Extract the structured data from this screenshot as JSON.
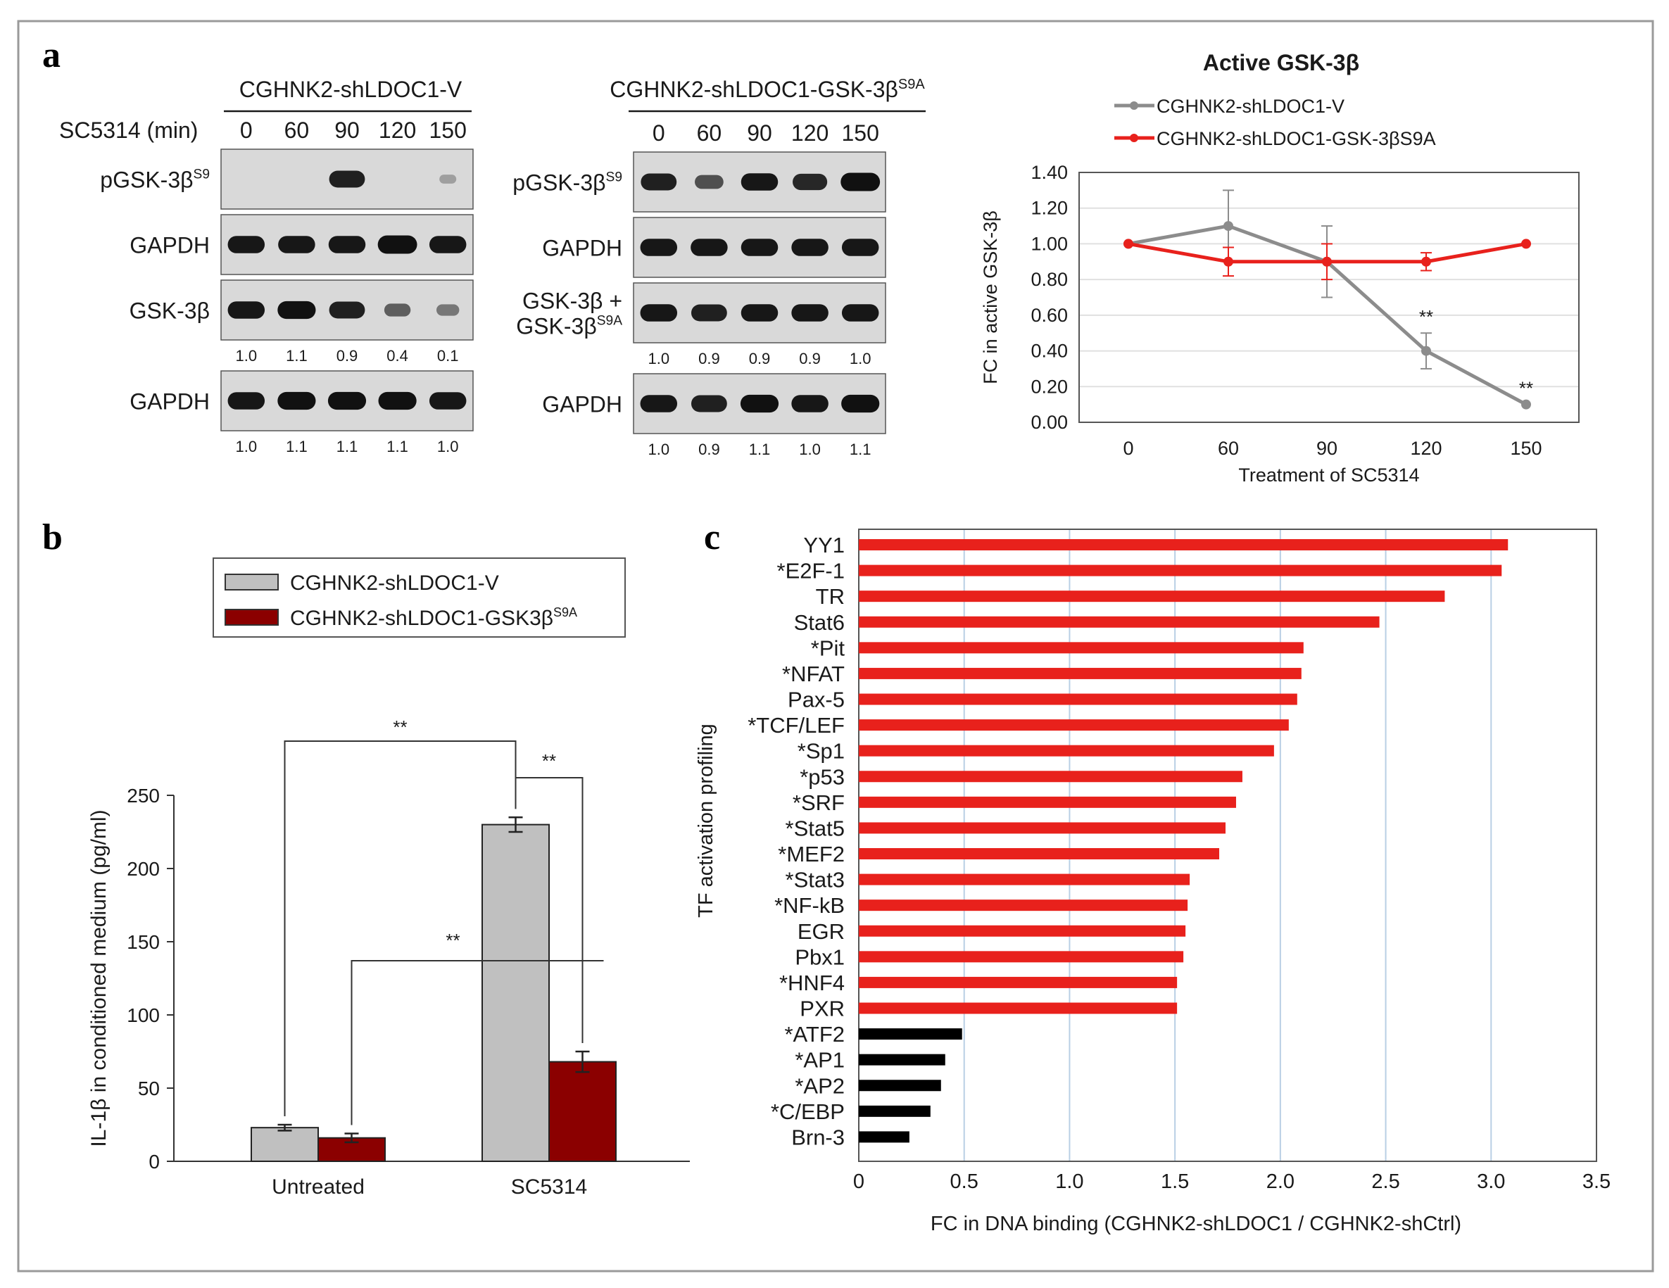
{
  "panels": {
    "a": "a",
    "b": "b",
    "c": "c"
  },
  "blots": {
    "left": {
      "title": "CGHNK2-shLDOC1-V",
      "time_label": "SC5314 (min)",
      "times": [
        "0",
        "60",
        "90",
        "120",
        "150"
      ],
      "rows": [
        {
          "label": "pGSK-3β",
          "sup": "S9",
          "intensities": [
            0,
            0,
            0.85,
            0,
            0.05
          ],
          "quant": null
        },
        {
          "label": "GAPDH",
          "sup": "",
          "intensities": [
            0.9,
            0.9,
            0.9,
            1.0,
            0.9
          ],
          "quant": null
        },
        {
          "label": "GSK-3β",
          "sup": "",
          "intensities": [
            0.9,
            0.95,
            0.85,
            0.45,
            0.3
          ],
          "quant": [
            "1.0",
            "1.1",
            "0.9",
            "0.4",
            "0.1"
          ]
        },
        {
          "label": "GAPDH",
          "sup": "",
          "intensities": [
            0.9,
            0.95,
            0.95,
            0.95,
            0.9
          ],
          "quant": [
            "1.0",
            "1.1",
            "1.1",
            "1.1",
            "1.0"
          ]
        }
      ]
    },
    "right": {
      "title": "CGHNK2-shLDOC1-GSK-3β",
      "title_sup": "S9A",
      "times": [
        "0",
        "60",
        "90",
        "120",
        "150"
      ],
      "rows": [
        {
          "label": "pGSK-3β",
          "sup": "S9",
          "intensities": [
            0.85,
            0.55,
            0.9,
            0.8,
            1.0
          ],
          "quant": null
        },
        {
          "label": "GAPDH",
          "sup": "",
          "intensities": [
            0.9,
            0.9,
            0.9,
            0.9,
            0.9
          ],
          "quant": null
        },
        {
          "label": "GSK-3β +",
          "label2": "GSK-3β",
          "sup": "S9A",
          "intensities": [
            0.9,
            0.85,
            0.9,
            0.9,
            0.9
          ],
          "quant": [
            "1.0",
            "0.9",
            "0.9",
            "0.9",
            "1.0"
          ]
        },
        {
          "label": "GAPDH",
          "sup": "",
          "intensities": [
            0.9,
            0.85,
            0.95,
            0.9,
            0.95
          ],
          "quant": [
            "1.0",
            "0.9",
            "1.1",
            "1.0",
            "1.1"
          ]
        }
      ]
    }
  },
  "chart_data": [
    {
      "type": "line",
      "title": "Active GSK-3β",
      "xlabel": "Treatment of SC5314",
      "ylabel": "FC in active GSK-3β",
      "categories": [
        "0",
        "60",
        "90",
        "120",
        "150"
      ],
      "ylim": [
        0,
        1.4
      ],
      "yticks": [
        "0.00",
        "0.20",
        "0.40",
        "0.60",
        "0.80",
        "1.00",
        "1.20",
        "1.40"
      ],
      "grid": true,
      "legend_position": "top",
      "series": [
        {
          "name": "CGHNK2-shLDOC1-V",
          "color": "#8c8c8c",
          "values": [
            1.0,
            1.1,
            0.9,
            0.4,
            0.1
          ],
          "errors": [
            0,
            0.2,
            0.2,
            0.1,
            0
          ],
          "annotations": [
            "",
            "",
            "",
            "**",
            "**"
          ]
        },
        {
          "name": "CGHNK2-shLDOC1-GSK-3βS9A",
          "color": "#e8211c",
          "values": [
            1.0,
            0.9,
            0.9,
            0.9,
            1.0
          ],
          "errors": [
            0,
            0.08,
            0.1,
            0.05,
            0
          ]
        }
      ]
    },
    {
      "type": "bar",
      "categories": [
        "Untreated",
        "SC5314"
      ],
      "ylabel": "IL-1β in conditioned medium (pg/ml)",
      "ylim": [
        0,
        250
      ],
      "yticks": [
        "0",
        "50",
        "100",
        "150",
        "200",
        "250"
      ],
      "legend_position": "top",
      "series": [
        {
          "name": "CGHNK2-shLDOC1-V",
          "color": "#c0c0c0",
          "values": [
            23,
            230
          ],
          "errors": [
            2,
            5
          ]
        },
        {
          "name": "CGHNK2-shLDOC1-GSK3β",
          "name_sup": "S9A",
          "color": "#8b0000",
          "values": [
            16,
            68
          ],
          "errors": [
            3,
            7
          ]
        }
      ],
      "significance": [
        "**",
        "**",
        "**"
      ]
    },
    {
      "type": "bar",
      "orientation": "horizontal",
      "xlabel": "FC in DNA binding  (CGHNK2-shLDOC1 / CGHNK2-shCtrl)",
      "ylabel": "TF activation profiling",
      "xlim": [
        0,
        3.5
      ],
      "xticks": [
        "0",
        "0.5",
        "1.0",
        "1.5",
        "2.0",
        "2.5",
        "3.0",
        "3.5"
      ],
      "grid": true,
      "categories": [
        "YY1",
        "*E2F-1",
        "TR",
        "Stat6",
        "*Pit",
        "*NFAT",
        "Pax-5",
        "*TCF/LEF",
        "*Sp1",
        "*p53",
        "*SRF",
        "*Stat5",
        "*MEF2",
        "*Stat3",
        "*NF-kB",
        "EGR",
        "Pbx1",
        "*HNF4",
        "PXR",
        "*ATF2",
        "*AP1",
        "*AP2",
        "*C/EBP",
        "Brn-3"
      ],
      "values": [
        3.08,
        3.05,
        2.78,
        2.47,
        2.11,
        2.1,
        2.08,
        2.04,
        1.97,
        1.82,
        1.79,
        1.74,
        1.71,
        1.57,
        1.56,
        1.55,
        1.54,
        1.51,
        1.51,
        0.49,
        0.41,
        0.39,
        0.34,
        0.24
      ],
      "colors": [
        "#e8211c",
        "#000000"
      ],
      "color_split_index": 19
    }
  ]
}
